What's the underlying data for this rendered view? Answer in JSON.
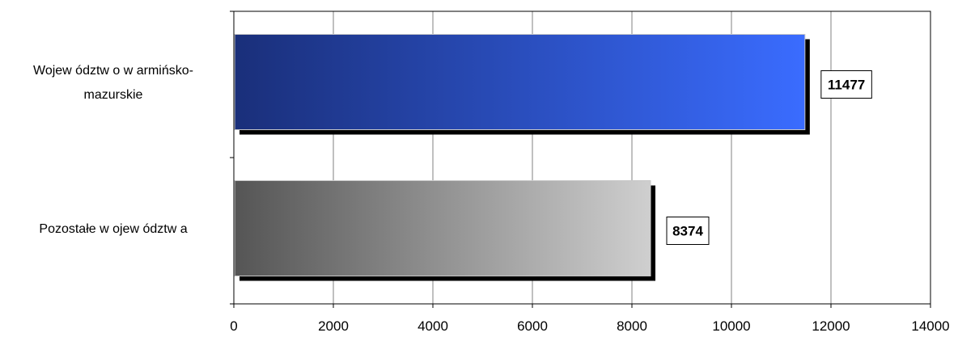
{
  "chart_data": {
    "type": "bar",
    "orientation": "horizontal",
    "categories": [
      "Wojew ództw o w armińsko-mazurskie",
      "Pozostałe w ojew ództw a"
    ],
    "category_lines": [
      [
        "Wojew ództw o w armińsko-",
        "mazurskie"
      ],
      [
        "Pozostałe w ojew ództw a"
      ]
    ],
    "values": [
      11477,
      8374
    ],
    "data_labels": [
      "11477",
      "8374"
    ],
    "xlim": [
      0,
      14000
    ],
    "xticks": [
      "0",
      "2000",
      "4000",
      "6000",
      "8000",
      "10000",
      "12000",
      "14000"
    ],
    "grid": true,
    "legend": "none",
    "colors": {
      "bar1_from": "#1a2f7a",
      "bar1_to": "#3a6cff",
      "bar2_from": "#555555",
      "bar2_to": "#cfcfcf",
      "shadow": "#000000",
      "grid": "#808080"
    }
  }
}
